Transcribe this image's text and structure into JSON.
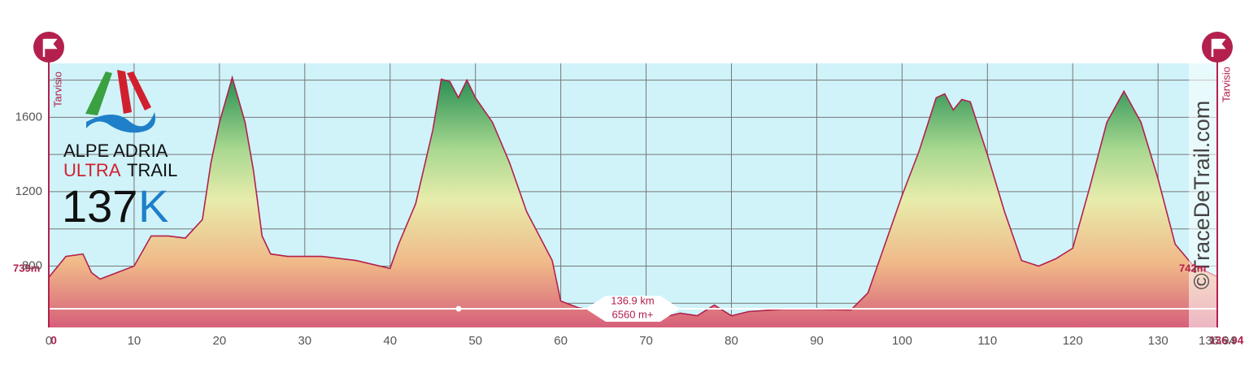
{
  "chart_data": {
    "type": "area",
    "x": [
      0,
      2,
      4,
      5,
      6,
      8,
      10,
      12,
      14,
      16,
      18,
      19,
      20,
      21.5,
      23,
      24,
      25,
      26,
      28,
      32,
      36,
      40,
      41,
      43,
      45,
      46,
      47,
      48,
      49,
      50,
      52,
      54,
      56,
      58,
      59,
      60,
      62,
      64,
      66,
      68,
      70,
      72,
      74,
      76,
      78,
      80,
      82,
      86,
      90,
      94,
      96,
      98,
      100,
      102,
      104,
      105,
      106,
      107,
      108,
      110,
      112,
      114,
      116,
      118,
      120,
      122,
      124,
      126,
      128,
      130,
      132,
      134,
      136.94
    ],
    "values": [
      739,
      852,
      865,
      765,
      730,
      765,
      800,
      962,
      962,
      950,
      1050,
      1355,
      1573,
      1814,
      1573,
      1311,
      962,
      865,
      852,
      852,
      830,
      787,
      918,
      1136,
      1530,
      1805,
      1792,
      1705,
      1800,
      1705,
      1573,
      1355,
      1093,
      918,
      830,
      612,
      577,
      560,
      547,
      525,
      512,
      525,
      547,
      533,
      590,
      533,
      555,
      568,
      568,
      564,
      656,
      918,
      1180,
      1420,
      1705,
      1726,
      1639,
      1696,
      1683,
      1399,
      1093,
      830,
      800,
      839,
      896,
      1224,
      1573,
      1740,
      1573,
      1268,
      918,
      809,
      742
    ],
    "color": "#b3204d",
    "xlim": [
      0,
      136.94
    ],
    "ylim": [
      470,
      1890
    ],
    "xticks": [
      0,
      10,
      20,
      30,
      40,
      50,
      60,
      70,
      80,
      90,
      100,
      110,
      120,
      130,
      136.94
    ],
    "yticks": [
      800,
      1200,
      1600
    ],
    "grid": true,
    "start_label": "739m",
    "end_label": "742m",
    "start_km": "0",
    "end_km": "136.94",
    "start_place": "Tarvisio",
    "end_place": "Tarvisio",
    "distance": "136.9 km",
    "ascent": "6560 m+",
    "logo_line1": "ALPE ADRIA",
    "logo_line2a": "ULTRA",
    "logo_line2b": "TRAIL",
    "logo_big": "137",
    "logo_k": "K",
    "watermark": "©TraceDeTrail.com"
  }
}
